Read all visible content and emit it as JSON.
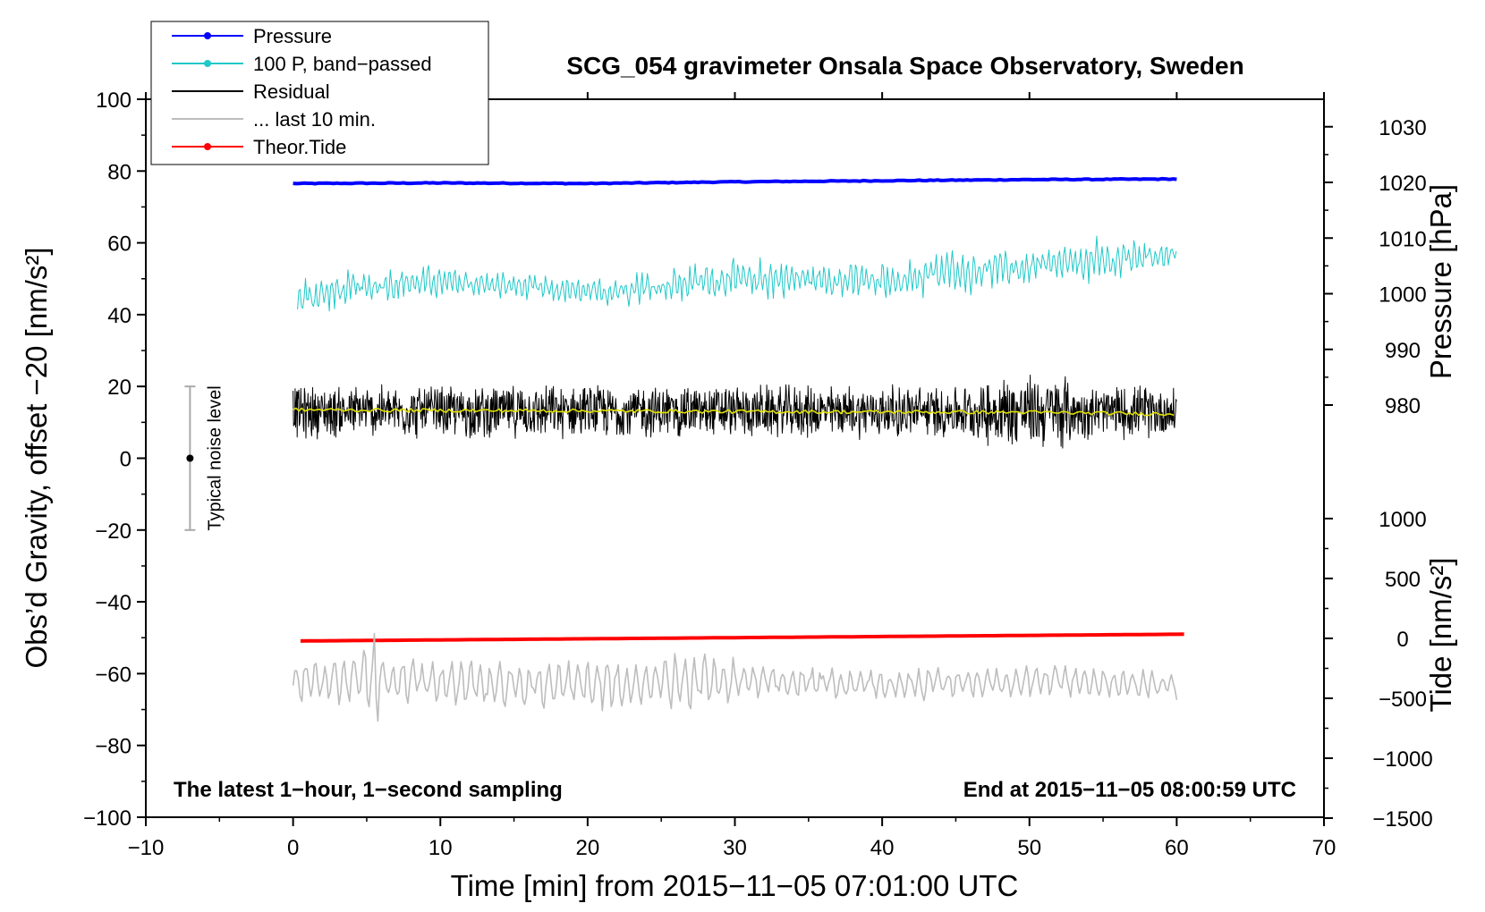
{
  "chart_data": {
    "type": "line",
    "title": "SCG_054 gravimeter Onsala Space Observatory, Sweden",
    "xlabel": "Time [min] from 2015−11−05 07:01:00 UTC",
    "ylabel_left": "Obs’d Gravity, offset −20 [nm/s²]",
    "ylabel_right_top": "Pressure [hPa]",
    "ylabel_right_bottom": "Tide [nm/s²]",
    "xlim": [
      -10,
      70
    ],
    "ylim": [
      -100,
      100
    ],
    "pressure_axis": {
      "data_min": 975,
      "data_max": 1030
    },
    "tide_axis": {
      "data_min": -1500,
      "data_max": 1000
    },
    "x_ticks": [
      "−10",
      "0",
      "10",
      "20",
      "30",
      "40",
      "50",
      "60",
      "70"
    ],
    "x_tick_values": [
      -10,
      0,
      10,
      20,
      30,
      40,
      50,
      60,
      70
    ],
    "y_ticks": [
      "100",
      "80",
      "60",
      "40",
      "20",
      "0",
      "−20",
      "−40",
      "−60",
      "−80",
      "−100"
    ],
    "y_tick_values": [
      100,
      80,
      60,
      40,
      20,
      0,
      -20,
      -40,
      -60,
      -80,
      -100
    ],
    "pressure_ticks": [
      "1030",
      "1020",
      "1010",
      "1000",
      "990",
      "980"
    ],
    "pressure_tick_values": [
      1030,
      1020,
      1010,
      1000,
      990,
      980
    ],
    "tide_ticks": [
      "1000",
      "500",
      "0",
      "−500",
      "−1000",
      "−1500"
    ],
    "tide_tick_values": [
      1000,
      500,
      0,
      -500,
      -1000,
      -1500
    ],
    "legend": [
      {
        "label": "Pressure",
        "color": "#0000ff",
        "marker": true
      },
      {
        "label": "100 P, band−passed",
        "color": "#20c8c8",
        "marker": true
      },
      {
        "label": "Residual",
        "color": "#000000",
        "marker": false
      },
      {
        "label": "... last 10 min.",
        "color": "#bdbdbd",
        "marker": false
      },
      {
        "label": "Theor.Tide",
        "color": "#ff0000",
        "marker": true
      }
    ],
    "series": [
      {
        "name": "Pressure",
        "color": "#0000ff",
        "axis": "pressure",
        "x": [
          0,
          10,
          20,
          30,
          40,
          50,
          60
        ],
        "values": [
          1019.8,
          1019.9,
          1019.8,
          1020.1,
          1020.3,
          1020.5,
          1020.6
        ]
      },
      {
        "name": "100 P, band−passed",
        "color": "#20c8c8",
        "axis": "left",
        "x": [
          0,
          5,
          10,
          15,
          20,
          25,
          30,
          35,
          40,
          45,
          50,
          55,
          60
        ],
        "values": [
          44,
          48,
          49,
          48,
          46,
          48,
          50,
          50,
          49,
          52,
          53,
          55,
          57
        ],
        "amplitude": [
          5,
          4,
          4,
          3,
          3,
          4,
          5,
          4,
          5,
          5,
          4,
          5,
          3
        ]
      },
      {
        "name": "Residual",
        "color": "#000000",
        "axis": "left",
        "x": [
          0,
          60
        ],
        "values": [
          13,
          13
        ],
        "amplitude": 8
      },
      {
        "name": "Residual smoothed",
        "color": "#e0e000",
        "axis": "left",
        "x": [
          0,
          10,
          20,
          30,
          40,
          50,
          60
        ],
        "values": [
          13.5,
          13.3,
          13.2,
          13.0,
          12.9,
          12.8,
          12.3
        ]
      },
      {
        "name": "Theor.Tide",
        "color": "#ff0000",
        "axis": "tide",
        "x": [
          0,
          60.5
        ],
        "values": [
          -22,
          35
        ]
      },
      {
        "name": "... last 10 min.",
        "color": "#bdbdbd",
        "axis": "left",
        "x": [
          0,
          10,
          20,
          30,
          40,
          50,
          60
        ],
        "values": [
          -62,
          -62,
          -63,
          -62,
          -63,
          -62,
          -63
        ],
        "amplitude": 7
      }
    ],
    "noise_bar": {
      "x": -7,
      "y": 0,
      "half_range": 20,
      "label": "Typical noise level"
    },
    "annotations": {
      "left": "The latest 1−hour, 1−second sampling",
      "right": "End at 2015−11−05 08:00:59 UTC"
    }
  }
}
